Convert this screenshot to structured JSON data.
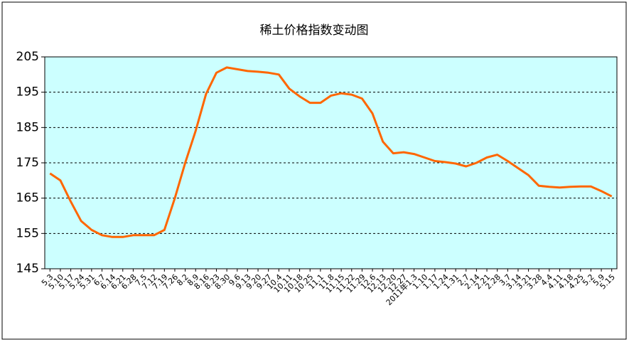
{
  "chart_data": {
    "type": "line",
    "title": "稀土价格指数变动图",
    "categories": [
      "5.3",
      "5.10",
      "5.17",
      "5.24",
      "5.31",
      "6.7",
      "6.14",
      "6.21",
      "6.28",
      "7.5",
      "7.12",
      "7.19",
      "7.26",
      "8.2",
      "8.9",
      "8.16",
      "8.23",
      "8.30",
      "9.6",
      "9.13",
      "9.20",
      "9.27",
      "10.4",
      "10.11",
      "10.18",
      "10.25",
      "11.1",
      "11.8",
      "11.15",
      "11.22",
      "11.29",
      "12.6",
      "12.13",
      "12.20",
      "12.27",
      "2011年1.3",
      "1.10",
      "1.17",
      "1.24",
      "1.31",
      "2.7",
      "2.14",
      "2.21",
      "2.28",
      "3.7",
      "3.14",
      "3.21",
      "3.28",
      "4.4",
      "4.11",
      "4.18",
      "4.25",
      "5.2",
      "5.9",
      "5.15"
    ],
    "series": [
      {
        "name": "稀土价格指数",
        "color": "#ff6600",
        "values": [
          172,
          170,
          164,
          158.5,
          156,
          154.5,
          154,
          154,
          154.5,
          154.5,
          154.5,
          156,
          165,
          175,
          184,
          194.5,
          200.5,
          202,
          201.5,
          201,
          200.8,
          200.5,
          200,
          196,
          193.8,
          192,
          192,
          194,
          194.7,
          194.3,
          193.2,
          189,
          181,
          177.7,
          178,
          177.5,
          176.5,
          175.5,
          175.2,
          174.8,
          174,
          175,
          176.5,
          177.3,
          175.5,
          173.5,
          171.5,
          168.5,
          168.2,
          168,
          168.2,
          168.3,
          168.3,
          167,
          165.5
        ]
      }
    ],
    "ylim": [
      145,
      205
    ],
    "yticks": [
      145,
      155,
      165,
      175,
      185,
      195,
      205
    ],
    "grid": true,
    "background": "#ccffff"
  }
}
